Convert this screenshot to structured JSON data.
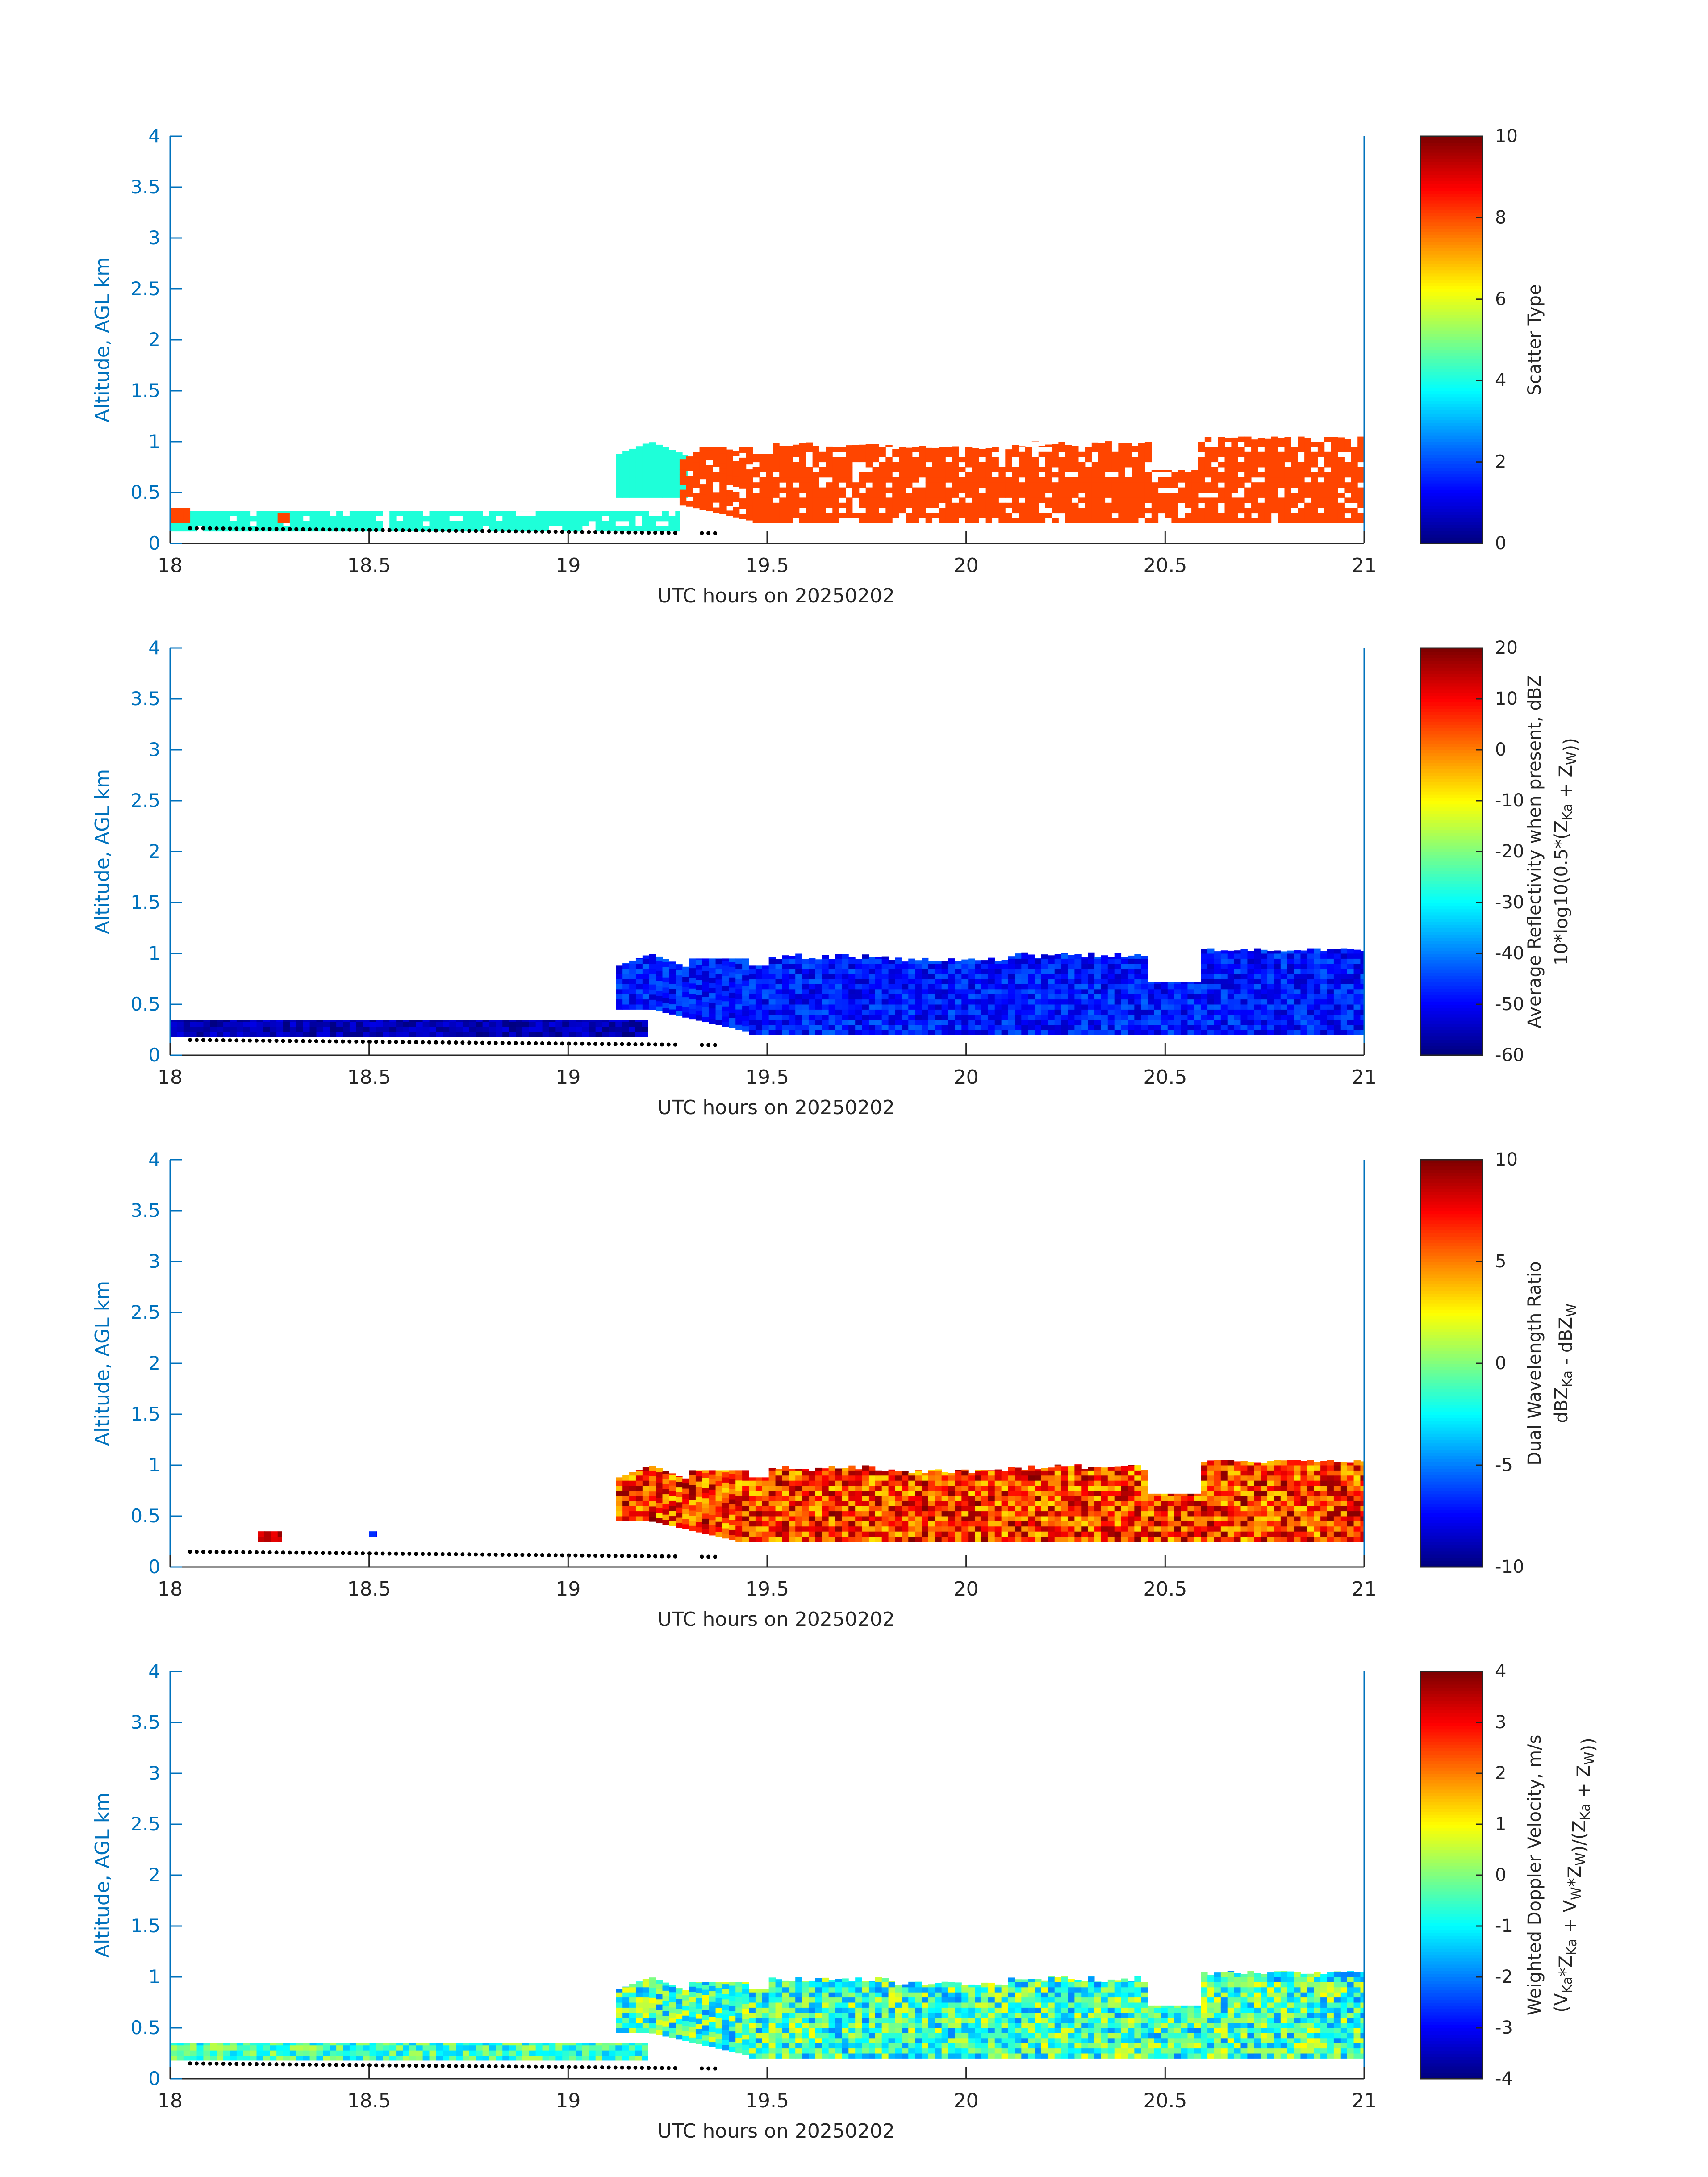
{
  "chart_data": [
    {
      "type": "heatmap",
      "panel": "scatter-type",
      "xlabel": "UTC hours on 20250202",
      "ylabel": "Altitude, AGL km",
      "xlim": [
        18,
        21
      ],
      "ylim": [
        0,
        4
      ],
      "xticks": [
        "18",
        "18.5",
        "19",
        "19.5",
        "20",
        "20.5",
        "21"
      ],
      "yticks": [
        "0",
        "0.5",
        "1",
        "1.5",
        "2",
        "2.5",
        "3",
        "3.5",
        "4"
      ],
      "colorbar": {
        "label": "Scatter Type",
        "range": [
          0,
          10
        ],
        "ticks": [
          "0",
          "2",
          "4",
          "6",
          "8",
          "10"
        ]
      },
      "regions": [
        {
          "category_value": 3.5,
          "color": "#1effd9",
          "x": [
            18.0,
            19.28
          ],
          "y": [
            0.12,
            0.32
          ],
          "note": "scattered cells with gaps"
        },
        {
          "category_value": 3.5,
          "color": "#1effd9",
          "x": [
            19.12,
            19.3
          ],
          "y": [
            0.45,
            1.0
          ]
        },
        {
          "category_value": 9,
          "color": "#ff4500",
          "x": [
            18.0,
            18.05
          ],
          "y": [
            0.2,
            0.35
          ]
        },
        {
          "category_value": 9,
          "color": "#ff4500",
          "x": [
            18.27,
            18.3
          ],
          "y": [
            0.2,
            0.3
          ]
        },
        {
          "category_value": 9,
          "color": "#ff4500",
          "x": [
            19.28,
            21.0
          ],
          "y": [
            0.2,
            1.05
          ],
          "note": "mixed with 3.5 columns near 19.3"
        }
      ]
    },
    {
      "type": "heatmap",
      "panel": "reflectivity",
      "xlabel": "UTC hours on 20250202",
      "ylabel": "Altitude, AGL km",
      "xlim": [
        18,
        21
      ],
      "ylim": [
        0,
        4
      ],
      "xticks": [
        "18",
        "18.5",
        "19",
        "19.5",
        "20",
        "20.5",
        "21"
      ],
      "yticks": [
        "0",
        "0.5",
        "1",
        "1.5",
        "2",
        "2.5",
        "3",
        "3.5",
        "4"
      ],
      "colorbar": {
        "label_line1": "Average Reflectivity when present, dBZ",
        "label_line2": "10*log10(0.5*(Z",
        "label_sub1": "Ka",
        "label_mid": " + Z",
        "label_sub2": "W",
        "label_end": "))",
        "range": [
          -60,
          20
        ],
        "ticks": [
          "-60",
          "-50",
          "-40",
          "-30",
          "-20",
          "-10",
          "0",
          "10",
          "20"
        ]
      },
      "regions": [
        {
          "value_range": [
            -60,
            -52
          ],
          "x": [
            18.0,
            19.2
          ],
          "y": [
            0.18,
            0.35
          ]
        },
        {
          "value_range": [
            -55,
            -42
          ],
          "x": [
            19.12,
            21.0
          ],
          "y": [
            0.18,
            1.05
          ]
        }
      ]
    },
    {
      "type": "heatmap",
      "panel": "dual-wavelength-ratio",
      "xlabel": "UTC hours on 20250202",
      "ylabel": "Altitude, AGL km",
      "xlim": [
        18,
        21
      ],
      "ylim": [
        0,
        4
      ],
      "xticks": [
        "18",
        "18.5",
        "19",
        "19.5",
        "20",
        "20.5",
        "21"
      ],
      "yticks": [
        "0",
        "0.5",
        "1",
        "1.5",
        "2",
        "2.5",
        "3",
        "3.5",
        "4"
      ],
      "colorbar": {
        "label_line1": "Dual Wavelength Ratio",
        "label_line2": "dBZ",
        "label_sub1": "Ka",
        "label_mid": " - dBZ",
        "label_sub2": "W",
        "range": [
          -10,
          10
        ],
        "ticks": [
          "-10",
          "-5",
          "0",
          "5",
          "10"
        ]
      },
      "regions": [
        {
          "value_range": [
            7,
            10
          ],
          "x": [
            18.22,
            18.28
          ],
          "y": [
            0.25,
            0.35
          ]
        },
        {
          "value_range": [
            -8,
            -6
          ],
          "x": [
            18.5,
            18.52
          ],
          "y": [
            0.3,
            0.35
          ]
        },
        {
          "value_range": [
            3,
            10
          ],
          "x": [
            19.12,
            21.0
          ],
          "y": [
            0.25,
            1.05
          ]
        }
      ]
    },
    {
      "type": "heatmap",
      "panel": "doppler-velocity",
      "xlabel": "UTC hours on 20250202",
      "ylabel": "Altitude, AGL km",
      "xlim": [
        18,
        21
      ],
      "ylim": [
        0,
        4
      ],
      "xticks": [
        "18",
        "18.5",
        "19",
        "19.5",
        "20",
        "20.5",
        "21"
      ],
      "yticks": [
        "0",
        "0.5",
        "1",
        "1.5",
        "2",
        "2.5",
        "3",
        "3.5",
        "4"
      ],
      "colorbar": {
        "label_line1": "Weighted Doppler Velocity, m/s",
        "label_line2": "(V",
        "label_sub_a": "Ka",
        "label_p2": "*Z",
        "label_sub_b": "Ka",
        "label_p3": " + V",
        "label_sub_c": "W",
        "label_p4": "*Z",
        "label_sub_d": "W",
        "label_p5": ")/(Z",
        "label_sub_e": "Ka",
        "label_p6": " + Z",
        "label_sub_f": "W",
        "label_p7": "))",
        "range": [
          -4,
          4
        ],
        "ticks": [
          "-4",
          "-3",
          "-2",
          "-1",
          "0",
          "1",
          "2",
          "3",
          "4"
        ]
      },
      "regions": [
        {
          "value_range": [
            -1.5,
            0.5
          ],
          "x": [
            18.0,
            19.2
          ],
          "y": [
            0.18,
            0.35
          ]
        },
        {
          "value_range": [
            -2,
            1
          ],
          "x": [
            19.12,
            21.0
          ],
          "y": [
            0.18,
            1.1
          ]
        }
      ]
    }
  ],
  "ground_dots": {
    "x_range": [
      18.05,
      19.38
    ],
    "y": [
      0.15,
      0.1
    ],
    "color": "#000000"
  }
}
